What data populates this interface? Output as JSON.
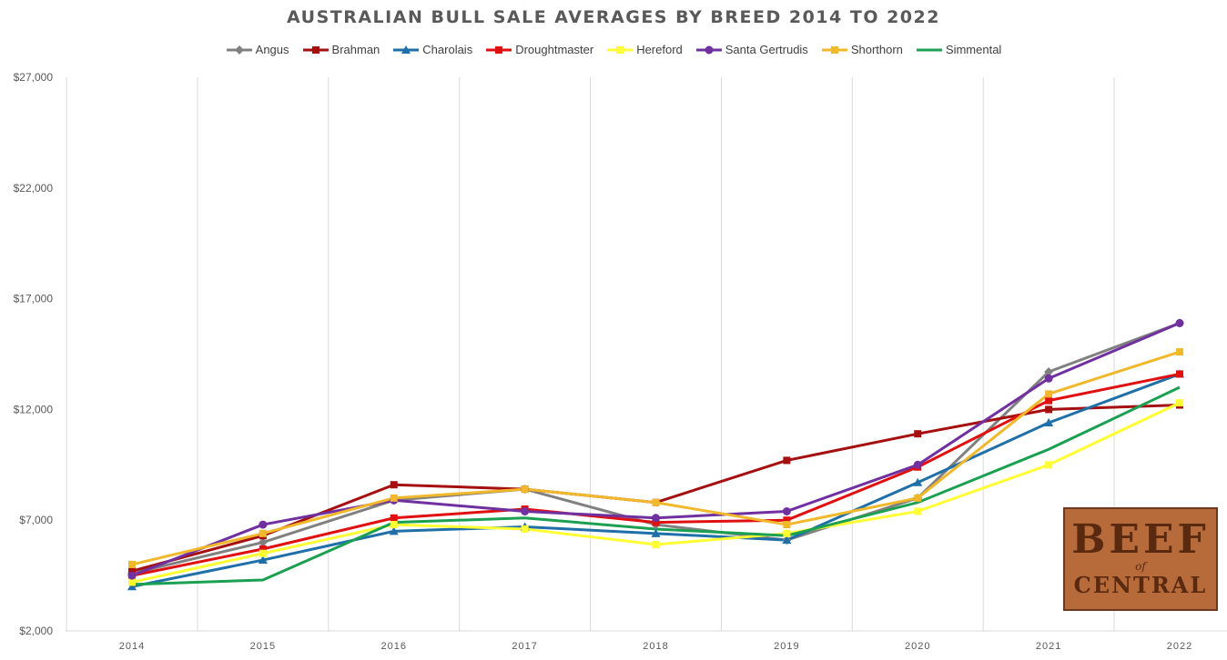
{
  "chart_data": {
    "type": "line",
    "title": "AUSTRALIAN BULL SALE AVERAGES BY BREED 2014 TO 2022",
    "xlabel": "",
    "ylabel": "",
    "x": [
      "2014",
      "2015",
      "2016",
      "2017",
      "2018",
      "2019",
      "2020",
      "2021",
      "2022"
    ],
    "ylim": [
      2000,
      27000
    ],
    "yticks": [
      2000,
      7000,
      12000,
      17000,
      22000,
      27000
    ],
    "ytick_labels": [
      "$2,000",
      "$7,000",
      "$12,000",
      "$17,000",
      "$22,000",
      "$27,000"
    ],
    "grid": "vertical",
    "legend": "top",
    "series": [
      {
        "name": "Angus",
        "color": "#808080",
        "marker": "diamond",
        "values": [
          4600,
          6000,
          7900,
          8400,
          6800,
          6100,
          8000,
          13700,
          15900
        ]
      },
      {
        "name": "Brahman",
        "color": "#a50f0f",
        "marker": "square",
        "values": [
          4700,
          6300,
          8600,
          8400,
          7800,
          9700,
          10900,
          12000,
          12200
        ]
      },
      {
        "name": "Charolais",
        "color": "#1f6fa8",
        "marker": "triangle",
        "values": [
          4000,
          5200,
          6500,
          6700,
          6400,
          6100,
          8700,
          11400,
          13600
        ]
      },
      {
        "name": "Droughtmaster",
        "color": "#e01010",
        "marker": "square",
        "values": [
          4500,
          5700,
          7100,
          7500,
          6900,
          7000,
          9400,
          12400,
          13600
        ]
      },
      {
        "name": "Hereford",
        "color": "#ffff33",
        "marker": "square",
        "values": [
          4200,
          5500,
          6800,
          6600,
          5900,
          6400,
          7400,
          9500,
          12300
        ]
      },
      {
        "name": "Santa Gertrudis",
        "color": "#7030a0",
        "marker": "circle",
        "values": [
          4500,
          6800,
          7900,
          7400,
          7100,
          7400,
          9500,
          13400,
          15900
        ]
      },
      {
        "name": "Shorthorn",
        "color": "#f0b82a",
        "marker": "square",
        "values": [
          5000,
          6400,
          8000,
          8400,
          7800,
          6800,
          8000,
          12700,
          14600
        ]
      },
      {
        "name": "Simmental",
        "color": "#1aa050",
        "marker": "none",
        "values": [
          4100,
          4300,
          6900,
          7100,
          6600,
          6300,
          7800,
          10200,
          13000
        ]
      }
    ]
  },
  "watermark": {
    "top": "BEEF",
    "middle": "of",
    "bottom": "CENTRAL"
  }
}
